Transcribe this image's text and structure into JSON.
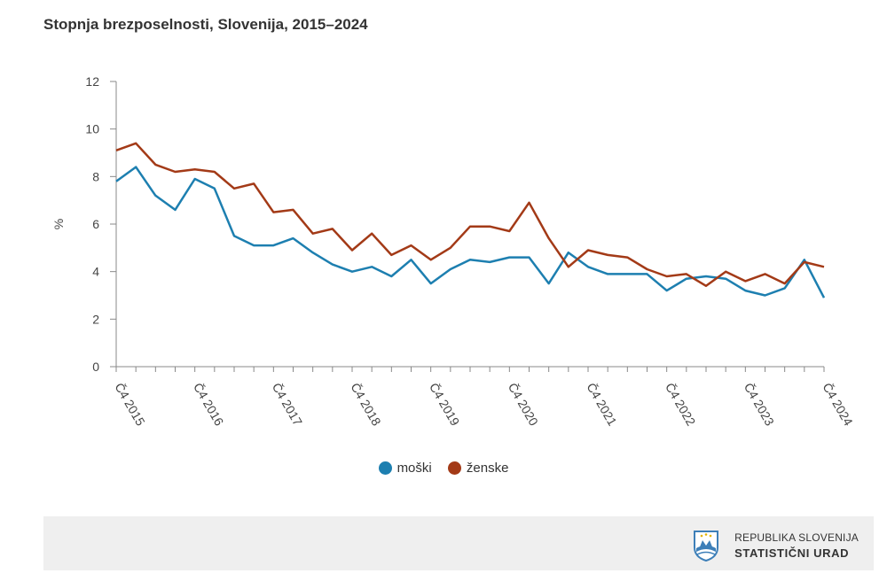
{
  "title": "Stopnja brezposelnosti, Slovenija, 2015–2024",
  "chart_data": {
    "type": "line",
    "title": "Stopnja brezposelnosti, Slovenija, 2015–2024",
    "xlabel": "",
    "ylabel": "%",
    "ylim": [
      0,
      12
    ],
    "yticks": [
      0,
      2,
      4,
      6,
      8,
      10,
      12
    ],
    "grid": false,
    "legend_position": "bottom-center",
    "x_tick_labels": [
      "Č4 2015",
      "Č4 2016",
      "Č4 2017",
      "Č4 2018",
      "Č4 2019",
      "Č4 2020",
      "Č4 2021",
      "Č4 2022",
      "Č4 2023",
      "Č4 2024"
    ],
    "series": [
      {
        "name": "moški",
        "color": "#1d7fb0",
        "values": [
          7.8,
          8.4,
          7.2,
          6.6,
          7.9,
          7.5,
          5.5,
          5.1,
          5.1,
          5.4,
          4.8,
          4.3,
          4.0,
          4.2,
          3.8,
          4.5,
          3.5,
          4.1,
          4.5,
          4.4,
          4.6,
          4.6,
          3.5,
          4.8,
          4.2,
          3.9,
          3.9,
          3.9,
          3.2,
          3.7,
          3.8,
          3.7,
          3.2,
          3.0,
          3.3,
          4.5,
          2.9
        ]
      },
      {
        "name": "ženske",
        "color": "#a33a17",
        "values": [
          9.1,
          9.4,
          8.5,
          8.2,
          8.3,
          8.2,
          7.5,
          7.7,
          6.5,
          6.6,
          5.6,
          5.8,
          4.9,
          5.6,
          4.7,
          5.1,
          4.5,
          5.0,
          5.9,
          5.9,
          5.7,
          6.9,
          5.4,
          4.2,
          4.9,
          4.7,
          4.6,
          4.1,
          3.8,
          3.9,
          3.4,
          4.0,
          3.6,
          3.9,
          3.5,
          4.4,
          4.2
        ]
      }
    ]
  },
  "footer": {
    "logo_line1": "REPUBLIKA SLOVENIJA",
    "logo_line2": "STATISTIČNI URAD"
  }
}
